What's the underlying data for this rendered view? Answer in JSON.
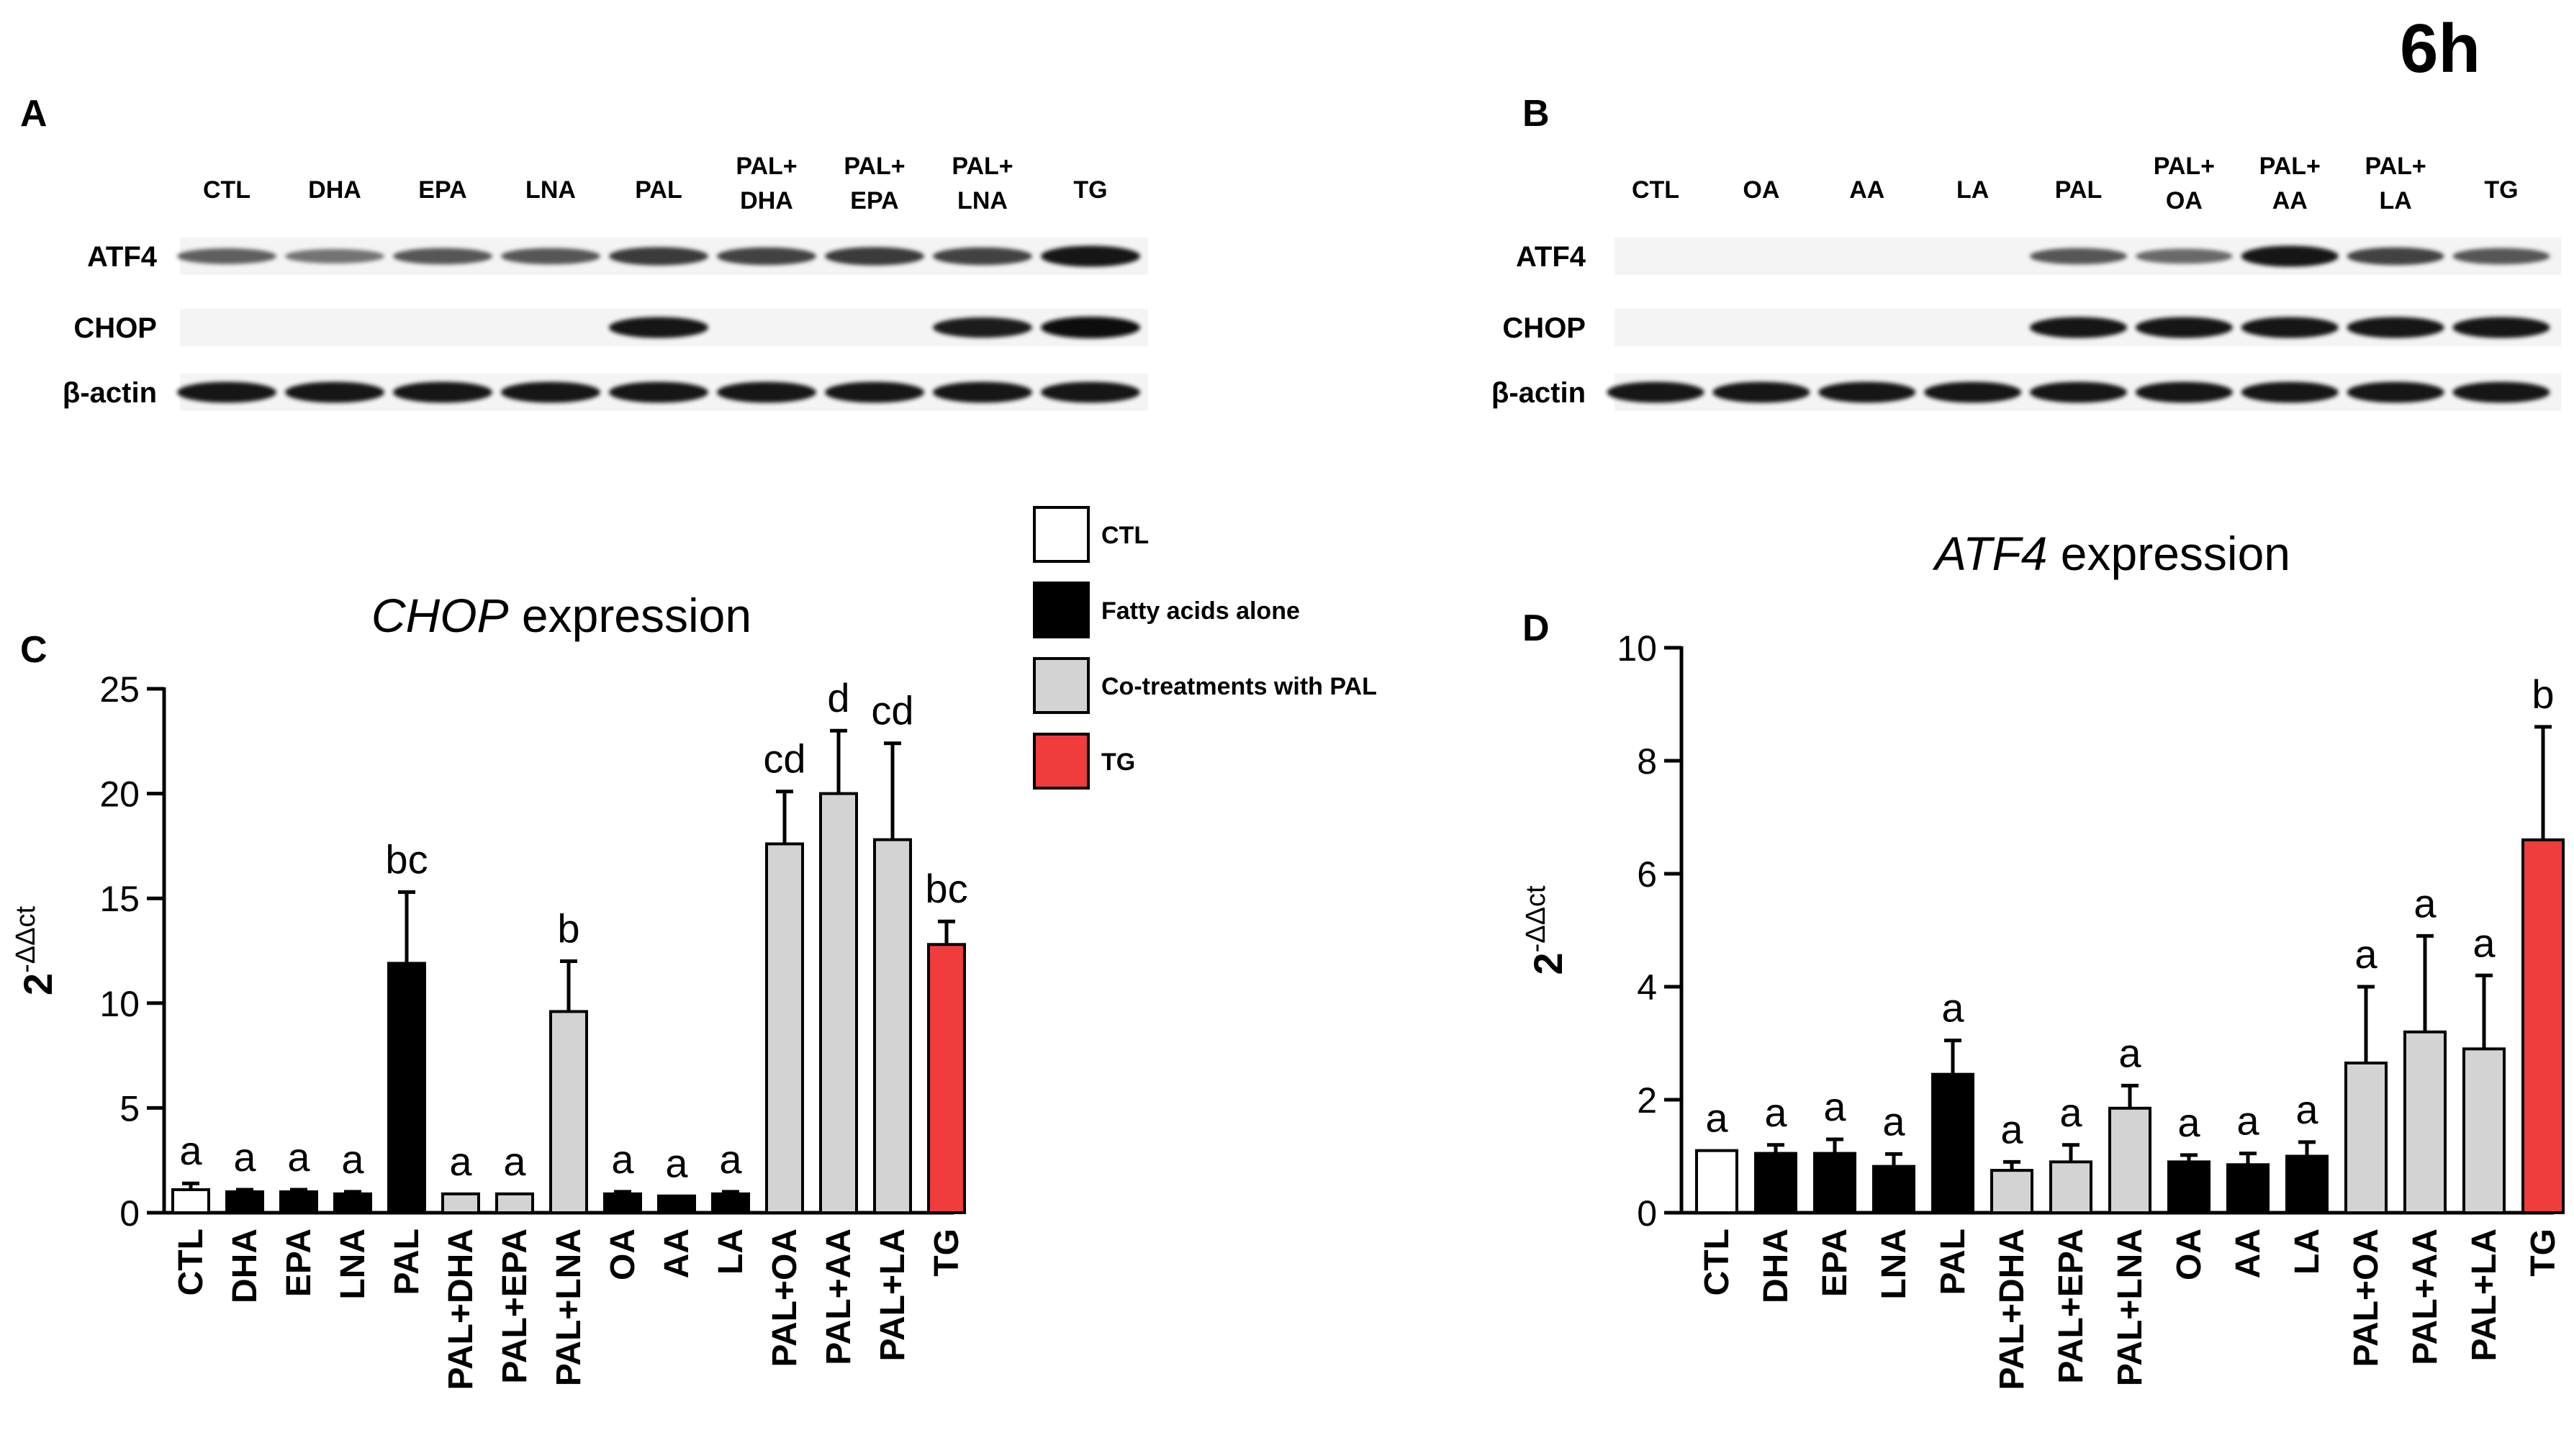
{
  "time_label": "6h",
  "legend": {
    "items": [
      {
        "label": "CTL",
        "color": "#ffffff"
      },
      {
        "label": "Fatty acids alone",
        "color": "#000000"
      },
      {
        "label": "Co-treatments with PAL",
        "color": "#d3d3d3"
      },
      {
        "label": "TG",
        "color": "#f03c3c"
      }
    ]
  },
  "blots": [
    {
      "panel": "A",
      "lanes": [
        "CTL",
        "DHA",
        "EPA",
        "LNA",
        "PAL",
        "PAL+\nDHA",
        "PAL+\nEPA",
        "PAL+\nLNA",
        "TG"
      ],
      "rows": [
        {
          "label": "ATF4",
          "intensity": [
            0.55,
            0.45,
            0.6,
            0.6,
            0.75,
            0.7,
            0.75,
            0.7,
            0.95
          ]
        },
        {
          "label": "CHOP",
          "intensity": [
            0,
            0,
            0,
            0,
            0.95,
            0,
            0,
            0.9,
            1.0
          ]
        },
        {
          "label": "β-actin",
          "intensity": [
            0.95,
            0.95,
            0.95,
            0.95,
            0.95,
            0.95,
            0.95,
            0.95,
            0.95
          ]
        }
      ]
    },
    {
      "panel": "B",
      "lanes": [
        "CTL",
        "OA",
        "AA",
        "LA",
        "PAL",
        "PAL+\nOA",
        "PAL+\nAA",
        "PAL+\nLA",
        "TG"
      ],
      "rows": [
        {
          "label": "ATF4",
          "intensity": [
            0,
            0,
            0,
            0,
            0.6,
            0.5,
            0.95,
            0.7,
            0.6
          ]
        },
        {
          "label": "CHOP",
          "intensity": [
            0,
            0,
            0,
            0,
            0.95,
            0.95,
            0.95,
            0.95,
            0.95
          ]
        },
        {
          "label": "β-actin",
          "intensity": [
            0.95,
            0.95,
            0.95,
            0.95,
            0.95,
            0.95,
            0.95,
            0.95,
            0.95
          ]
        }
      ]
    }
  ],
  "chart_data": [
    {
      "panel": "C",
      "type": "bar",
      "title_italic": "CHOP",
      "title_rest": " expression",
      "ylabel": "2-ΔΔct",
      "ylim": [
        0,
        25
      ],
      "yticks": [
        0,
        5,
        10,
        15,
        20,
        25
      ],
      "categories": [
        "CTL",
        "DHA",
        "EPA",
        "LNA",
        "PAL",
        "PAL+DHA",
        "PAL+EPA",
        "PAL+LNA",
        "OA",
        "AA",
        "LA",
        "PAL+OA",
        "PAL+AA",
        "PAL+LA",
        "TG"
      ],
      "values": [
        1.1,
        1.0,
        1.0,
        0.9,
        11.9,
        0.9,
        0.9,
        9.6,
        0.9,
        0.8,
        0.9,
        17.6,
        20.0,
        17.8,
        12.8
      ],
      "errors": [
        0.3,
        0.1,
        0.1,
        0.1,
        3.4,
        0.0,
        0.0,
        2.4,
        0.1,
        0.0,
        0.1,
        2.5,
        3.0,
        4.6,
        1.1
      ],
      "letters": [
        "a",
        "a",
        "a",
        "a",
        "bc",
        "a",
        "a",
        "b",
        "a",
        "a",
        "a",
        "cd",
        "d",
        "cd",
        "bc"
      ],
      "groups": [
        "ctl",
        "fa",
        "fa",
        "fa",
        "fa",
        "co",
        "co",
        "co",
        "fa",
        "fa",
        "fa",
        "co",
        "co",
        "co",
        "tg"
      ]
    },
    {
      "panel": "D",
      "type": "bar",
      "title_italic": "ATF4",
      "title_rest": " expression",
      "ylabel": "2-ΔΔct",
      "ylim": [
        0,
        10
      ],
      "yticks": [
        0,
        2,
        4,
        6,
        8,
        10
      ],
      "categories": [
        "CTL",
        "DHA",
        "EPA",
        "LNA",
        "PAL",
        "PAL+DHA",
        "PAL+EPA",
        "PAL+LNA",
        "OA",
        "AA",
        "LA",
        "PAL+OA",
        "PAL+AA",
        "PAL+LA",
        "TG"
      ],
      "values": [
        1.1,
        1.05,
        1.05,
        0.82,
        2.45,
        0.75,
        0.9,
        1.85,
        0.9,
        0.85,
        1.0,
        2.65,
        3.2,
        2.9,
        6.6
      ],
      "errors": [
        0.0,
        0.15,
        0.25,
        0.22,
        0.6,
        0.15,
        0.3,
        0.4,
        0.12,
        0.2,
        0.25,
        1.35,
        1.7,
        1.3,
        2.0
      ],
      "letters": [
        "a",
        "a",
        "a",
        "a",
        "a",
        "a",
        "a",
        "a",
        "a",
        "a",
        "a",
        "a",
        "a",
        "a",
        "b"
      ],
      "groups": [
        "ctl",
        "fa",
        "fa",
        "fa",
        "fa",
        "co",
        "co",
        "co",
        "fa",
        "fa",
        "fa",
        "co",
        "co",
        "co",
        "tg"
      ]
    }
  ]
}
